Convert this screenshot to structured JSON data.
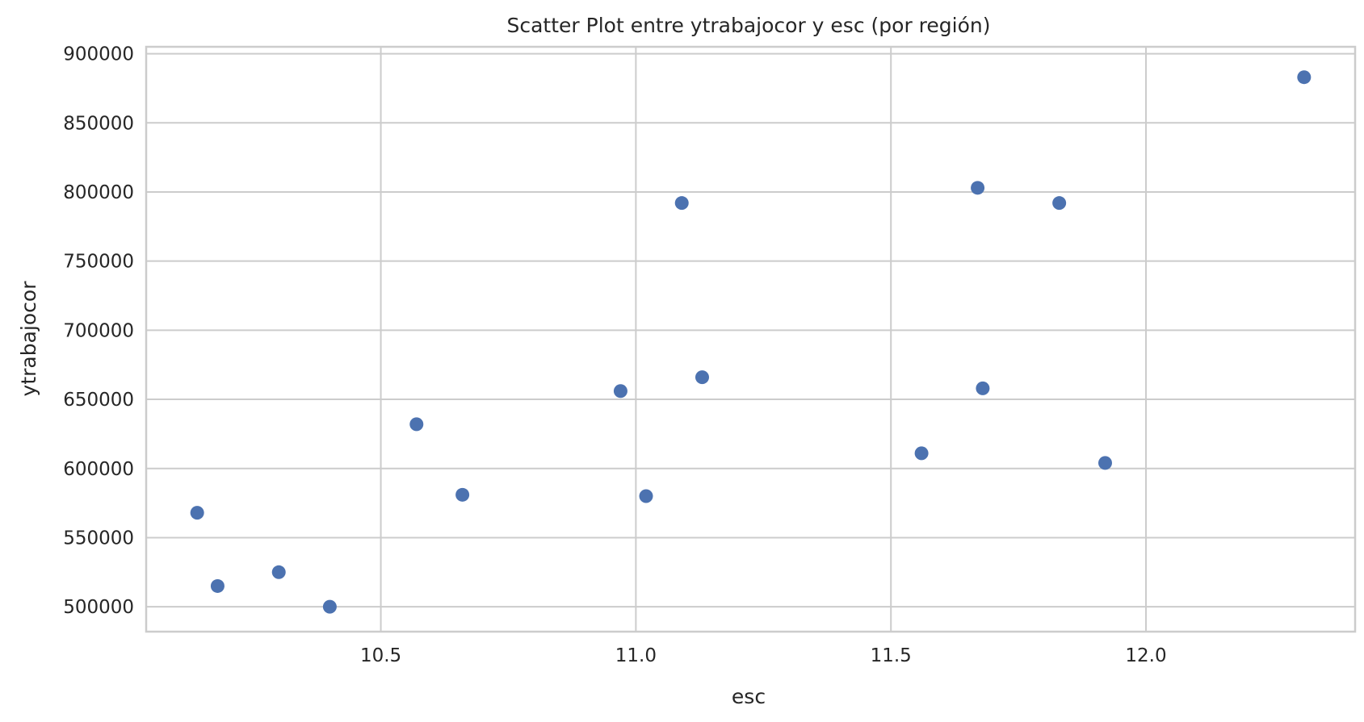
{
  "chart_data": {
    "type": "scatter",
    "title": "Scatter Plot entre ytrabajocor y esc (por región)",
    "xlabel": "esc",
    "ylabel": "ytrabajocor",
    "xlim": [
      10.04,
      12.41
    ],
    "ylim": [
      482000,
      905000
    ],
    "xticks": [
      10.5,
      11.0,
      11.5,
      12.0
    ],
    "xtick_labels": [
      "10.5",
      "11.0",
      "11.5",
      "12.0"
    ],
    "yticks": [
      500000,
      550000,
      600000,
      650000,
      700000,
      750000,
      800000,
      850000,
      900000
    ],
    "ytick_labels": [
      "500000",
      "550000",
      "600000",
      "650000",
      "700000",
      "750000",
      "800000",
      "850000",
      "900000"
    ],
    "grid": true,
    "point_color": "#4c72b0",
    "points": [
      {
        "x": 10.14,
        "y": 568000
      },
      {
        "x": 10.18,
        "y": 515000
      },
      {
        "x": 10.3,
        "y": 525000
      },
      {
        "x": 10.4,
        "y": 500000
      },
      {
        "x": 10.57,
        "y": 632000
      },
      {
        "x": 10.66,
        "y": 581000
      },
      {
        "x": 10.97,
        "y": 656000
      },
      {
        "x": 11.02,
        "y": 580000
      },
      {
        "x": 11.09,
        "y": 792000
      },
      {
        "x": 11.13,
        "y": 666000
      },
      {
        "x": 11.56,
        "y": 611000
      },
      {
        "x": 11.67,
        "y": 803000
      },
      {
        "x": 11.68,
        "y": 658000
      },
      {
        "x": 11.83,
        "y": 792000
      },
      {
        "x": 11.92,
        "y": 604000
      },
      {
        "x": 12.31,
        "y": 883000
      }
    ]
  }
}
